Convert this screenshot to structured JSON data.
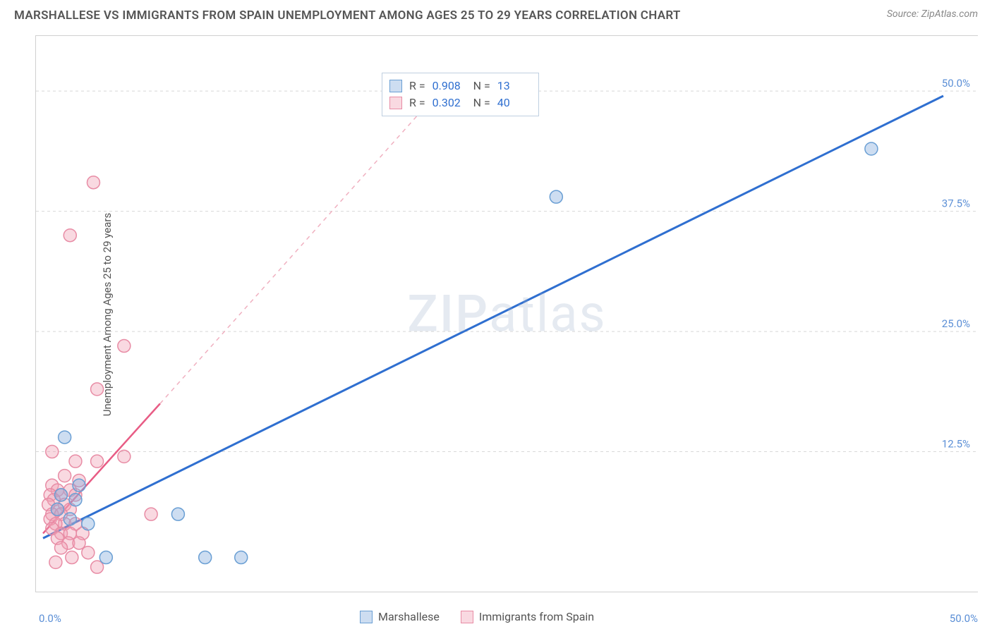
{
  "header": {
    "title": "MARSHALLESE VS IMMIGRANTS FROM SPAIN UNEMPLOYMENT AMONG AGES 25 TO 29 YEARS CORRELATION CHART",
    "source": "Source: ZipAtlas.com"
  },
  "chart": {
    "type": "scatter",
    "y_axis_label": "Unemployment Among Ages 25 to 29 years",
    "watermark": "ZIPatlas",
    "xlim": [
      0,
      50
    ],
    "ylim": [
      0,
      55
    ],
    "x_tick_labels": {
      "min": "0.0%",
      "max": "50.0%"
    },
    "y_ticks": [
      {
        "value": 12.5,
        "label": "12.5%"
      },
      {
        "value": 25.0,
        "label": "25.0%"
      },
      {
        "value": 37.5,
        "label": "37.5%"
      },
      {
        "value": 50.0,
        "label": "50.0%"
      }
    ],
    "background_color": "#ffffff",
    "grid_color": "#d8d8d8",
    "point_radius": 9,
    "series": [
      {
        "name": "Marshallese",
        "color_fill": "rgba(130,170,220,0.4)",
        "color_stroke": "#6a9fd4",
        "trend_color": "#2f6fd0",
        "r": "0.908",
        "n": "13",
        "trend": {
          "x1": 0,
          "y1": 3.5,
          "x2": 50,
          "y2": 49.5
        },
        "points": [
          {
            "x": 1.2,
            "y": 14.0
          },
          {
            "x": 1.0,
            "y": 8.0
          },
          {
            "x": 2.0,
            "y": 9.0
          },
          {
            "x": 1.5,
            "y": 5.5
          },
          {
            "x": 3.5,
            "y": 1.5
          },
          {
            "x": 7.5,
            "y": 6.0
          },
          {
            "x": 9.0,
            "y": 1.5
          },
          {
            "x": 11.0,
            "y": 1.5
          },
          {
            "x": 2.5,
            "y": 5.0
          },
          {
            "x": 1.8,
            "y": 7.5
          },
          {
            "x": 0.8,
            "y": 6.5
          },
          {
            "x": 28.5,
            "y": 39.0
          },
          {
            "x": 46.0,
            "y": 44.0
          }
        ]
      },
      {
        "name": "Immigrants from Spain",
        "color_fill": "rgba(240,160,180,0.4)",
        "color_stroke": "#e88ca5",
        "trend_color": "#e85c85",
        "r": "0.302",
        "n": "40",
        "trend": {
          "x1": 0,
          "y1": 4.0,
          "x2": 6.5,
          "y2": 17.5
        },
        "trend_dash": {
          "x1": 6.5,
          "y1": 17.5,
          "x2": 22,
          "y2": 50
        },
        "points": [
          {
            "x": 2.8,
            "y": 40.5
          },
          {
            "x": 1.5,
            "y": 35.0
          },
          {
            "x": 4.5,
            "y": 23.5
          },
          {
            "x": 3.0,
            "y": 19.0
          },
          {
            "x": 0.5,
            "y": 12.5
          },
          {
            "x": 1.8,
            "y": 11.5
          },
          {
            "x": 3.0,
            "y": 11.5
          },
          {
            "x": 1.2,
            "y": 10.0
          },
          {
            "x": 2.0,
            "y": 9.5
          },
          {
            "x": 0.5,
            "y": 9.0
          },
          {
            "x": 0.8,
            "y": 8.5
          },
          {
            "x": 1.5,
            "y": 8.5
          },
          {
            "x": 0.4,
            "y": 8.0
          },
          {
            "x": 1.0,
            "y": 8.0
          },
          {
            "x": 1.8,
            "y": 8.0
          },
          {
            "x": 0.6,
            "y": 7.5
          },
          {
            "x": 1.2,
            "y": 7.0
          },
          {
            "x": 0.3,
            "y": 7.0
          },
          {
            "x": 0.8,
            "y": 6.5
          },
          {
            "x": 1.5,
            "y": 6.5
          },
          {
            "x": 6.0,
            "y": 6.0
          },
          {
            "x": 0.5,
            "y": 6.0
          },
          {
            "x": 1.0,
            "y": 6.0
          },
          {
            "x": 4.5,
            "y": 12.0
          },
          {
            "x": 0.4,
            "y": 5.5
          },
          {
            "x": 1.2,
            "y": 5.0
          },
          {
            "x": 0.7,
            "y": 5.0
          },
          {
            "x": 1.8,
            "y": 5.0
          },
          {
            "x": 0.5,
            "y": 4.5
          },
          {
            "x": 1.0,
            "y": 4.0
          },
          {
            "x": 1.5,
            "y": 4.0
          },
          {
            "x": 2.2,
            "y": 4.0
          },
          {
            "x": 0.8,
            "y": 3.5
          },
          {
            "x": 1.4,
            "y": 3.0
          },
          {
            "x": 2.0,
            "y": 3.0
          },
          {
            "x": 1.0,
            "y": 2.5
          },
          {
            "x": 2.5,
            "y": 2.0
          },
          {
            "x": 1.6,
            "y": 1.5
          },
          {
            "x": 3.0,
            "y": 0.5
          },
          {
            "x": 0.7,
            "y": 1.0
          }
        ]
      }
    ],
    "bottom_legend": [
      {
        "label": "Marshallese",
        "swatch": "blue"
      },
      {
        "label": "Immigrants from Spain",
        "swatch": "pink"
      }
    ]
  }
}
